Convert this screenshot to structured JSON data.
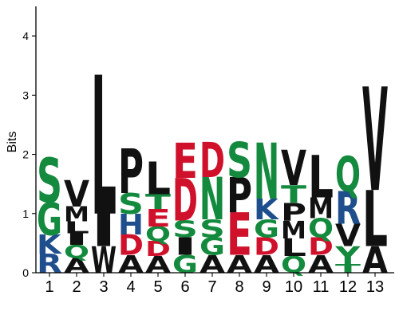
{
  "chart_data": {
    "type": "sequence-logo",
    "ylabel": "Bits",
    "ylim": [
      0,
      4.5
    ],
    "yticks": [
      0,
      1,
      2,
      3,
      4
    ],
    "positions": [
      "1",
      "2",
      "3",
      "4",
      "5",
      "6",
      "7",
      "8",
      "9",
      "10",
      "11",
      "12",
      "13"
    ],
    "colors": {
      "polar": "#138a3e",
      "basic": "#1f4e8c",
      "acidic": "#d0112b",
      "hydrophobic": "#111111"
    },
    "stacks": [
      [
        [
          "R",
          0.32,
          "basic"
        ],
        [
          "K",
          0.32,
          "basic"
        ],
        [
          "G",
          0.55,
          "polar"
        ],
        [
          "S",
          0.75,
          "polar"
        ]
      ],
      [
        [
          "A",
          0.25,
          "hydrophobic"
        ],
        [
          "Q",
          0.22,
          "polar"
        ],
        [
          "I",
          0.2,
          "hydrophobic"
        ],
        [
          "L",
          0.2,
          "hydrophobic"
        ],
        [
          "M",
          0.25,
          "hydrophobic"
        ],
        [
          "V",
          0.45,
          "hydrophobic"
        ]
      ],
      [
        [
          "W",
          0.45,
          "hydrophobic"
        ],
        [
          "I",
          0.55,
          "hydrophobic"
        ],
        [
          "L",
          2.35,
          "hydrophobic"
        ]
      ],
      [
        [
          "A",
          0.3,
          "hydrophobic"
        ],
        [
          "D",
          0.35,
          "acidic"
        ],
        [
          "H",
          0.35,
          "basic"
        ],
        [
          "S",
          0.35,
          "polar"
        ],
        [
          "P",
          0.75,
          "hydrophobic"
        ]
      ],
      [
        [
          "A",
          0.28,
          "hydrophobic"
        ],
        [
          "D",
          0.25,
          "acidic"
        ],
        [
          "Q",
          0.25,
          "polar"
        ],
        [
          "E",
          0.3,
          "acidic"
        ],
        [
          "T",
          0.25,
          "polar"
        ],
        [
          "L",
          0.55,
          "hydrophobic"
        ]
      ],
      [
        [
          "G",
          0.3,
          "polar"
        ],
        [
          "I",
          0.3,
          "hydrophobic"
        ],
        [
          "S",
          0.28,
          "polar"
        ],
        [
          "D",
          0.72,
          "acidic"
        ],
        [
          "E",
          0.6,
          "acidic"
        ]
      ],
      [
        [
          "A",
          0.3,
          "hydrophobic"
        ],
        [
          "G",
          0.3,
          "polar"
        ],
        [
          "S",
          0.3,
          "polar"
        ],
        [
          "N",
          0.72,
          "polar"
        ],
        [
          "D",
          0.6,
          "acidic"
        ]
      ],
      [
        [
          "A",
          0.3,
          "hydrophobic"
        ],
        [
          "E",
          0.72,
          "acidic"
        ],
        [
          "P",
          0.6,
          "hydrophobic"
        ],
        [
          "S",
          0.6,
          "polar"
        ]
      ],
      [
        [
          "A",
          0.3,
          "hydrophobic"
        ],
        [
          "D",
          0.3,
          "acidic"
        ],
        [
          "G",
          0.3,
          "polar"
        ],
        [
          "K",
          0.35,
          "basic"
        ],
        [
          "N",
          0.95,
          "polar"
        ]
      ],
      [
        [
          "Q",
          0.28,
          "polar"
        ],
        [
          "L",
          0.3,
          "hydrophobic"
        ],
        [
          "M",
          0.3,
          "hydrophobic"
        ],
        [
          "P",
          0.3,
          "hydrophobic"
        ],
        [
          "T",
          0.3,
          "polar"
        ],
        [
          "V",
          0.6,
          "hydrophobic"
        ]
      ],
      [
        [
          "A",
          0.3,
          "hydrophobic"
        ],
        [
          "D",
          0.3,
          "acidic"
        ],
        [
          "Q",
          0.32,
          "polar"
        ],
        [
          "M",
          0.35,
          "hydrophobic"
        ],
        [
          "L",
          0.72,
          "hydrophobic"
        ]
      ],
      [
        [
          "T",
          0.15,
          "polar"
        ],
        [
          "Y",
          0.3,
          "polar"
        ],
        [
          "V",
          0.38,
          "hydrophobic"
        ],
        [
          "R",
          0.55,
          "basic"
        ],
        [
          "Q",
          0.6,
          "polar"
        ]
      ],
      [
        [
          "A",
          0.45,
          "hydrophobic"
        ],
        [
          "L",
          0.95,
          "hydrophobic"
        ],
        [
          "V",
          1.75,
          "hydrophobic"
        ]
      ]
    ]
  }
}
